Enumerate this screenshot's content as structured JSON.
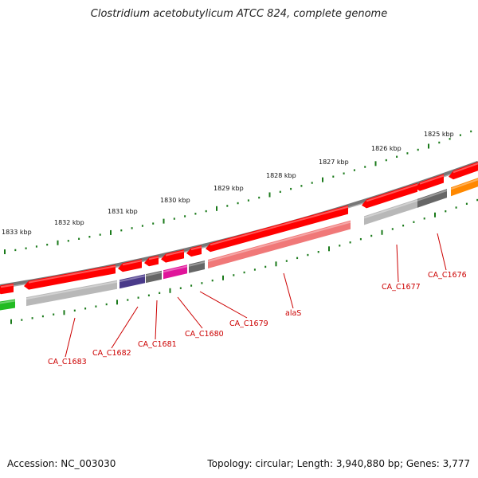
{
  "title": "Clostridium acetobutylicum ATCC 824, complete genome",
  "accession_text": "Accession: NC_003030",
  "topology_text": "Topology: circular; Length: 3,940,880 bp; Genes: 3,777",
  "scale_labels": [
    "1833 kbp",
    "1832 kbp",
    "1831 kbp",
    "1830 kbp",
    "1829 kbp",
    "1828 kbp",
    "1827 kbp",
    "1826 kbp",
    "1825 kbp"
  ],
  "gene_labels": [
    "CA_C1683",
    "CA_C1682",
    "CA_C1681",
    "CA_C1680",
    "CA_C1679",
    "alaS",
    "CA_C1677",
    "CA_C1676"
  ],
  "colors": {
    "cds_forward": "#ff0000",
    "alaS_shadow": "#f07878",
    "backbone": "#777777",
    "scale_ticks": "#1a7a1a",
    "label_red": "#cc0000",
    "cog_light_gray": "#b8b8b8",
    "cog_dark_gray": "#666666",
    "cog_purple": "#4a3a8a",
    "cog_magenta": "#e0149a",
    "cog_orange": "#ff8800",
    "cog_green": "#22bb22"
  }
}
